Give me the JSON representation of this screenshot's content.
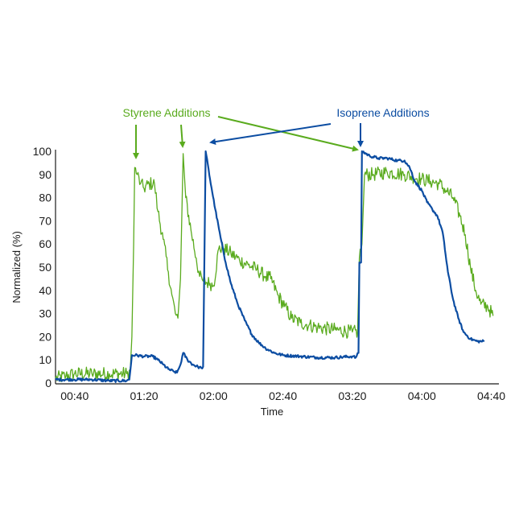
{
  "chart_data": {
    "type": "line",
    "title": "",
    "xlabel": "Time",
    "ylabel": "Normalized (%)",
    "ylim": [
      0,
      100
    ],
    "xlim_minutes": [
      29,
      284
    ],
    "grid": false,
    "legend": "none (annotations used)",
    "y_ticks": [
      "0",
      "10",
      "20",
      "30",
      "40",
      "50",
      "60",
      "70",
      "80",
      "90",
      "100"
    ],
    "x_ticks": [
      {
        "label": "00:40",
        "minutes": 40
      },
      {
        "label": "01:20",
        "minutes": 80
      },
      {
        "label": "02:00",
        "minutes": 120
      },
      {
        "label": "02:40",
        "minutes": 160
      },
      {
        "label": "03:20",
        "minutes": 200
      },
      {
        "label": "04:00",
        "minutes": 240
      },
      {
        "label": "04:40",
        "minutes": 280
      }
    ],
    "series": [
      {
        "name": "Styrene",
        "color": "#5aab1e",
        "noise": 3,
        "points": [
          [
            29,
            2
          ],
          [
            35,
            3
          ],
          [
            40,
            4
          ],
          [
            50,
            4
          ],
          [
            60,
            4
          ],
          [
            70,
            4
          ],
          [
            72,
            5
          ],
          [
            73,
            20
          ],
          [
            74,
            60
          ],
          [
            74.6,
            93
          ],
          [
            76,
            90
          ],
          [
            78,
            86
          ],
          [
            80,
            84
          ],
          [
            83,
            86
          ],
          [
            86,
            86
          ],
          [
            88,
            74
          ],
          [
            91,
            62
          ],
          [
            94,
            48
          ],
          [
            96,
            38
          ],
          [
            98,
            30
          ],
          [
            99.5,
            28
          ],
          [
            101,
            45
          ],
          [
            102.5,
            99
          ],
          [
            104,
            80
          ],
          [
            107,
            66
          ],
          [
            110,
            54
          ],
          [
            112,
            46
          ],
          [
            114,
            44
          ],
          [
            118,
            43
          ],
          [
            120,
            42
          ],
          [
            123,
            58
          ],
          [
            126,
            58
          ],
          [
            130,
            56
          ],
          [
            135,
            53
          ],
          [
            140,
            51
          ],
          [
            145,
            49
          ],
          [
            150,
            46
          ],
          [
            153,
            45
          ],
          [
            157,
            38
          ],
          [
            161,
            33
          ],
          [
            165,
            28
          ],
          [
            170,
            26
          ],
          [
            175,
            25
          ],
          [
            180,
            24
          ],
          [
            190,
            23
          ],
          [
            200,
            22
          ],
          [
            203,
            22
          ],
          [
            204,
            54
          ],
          [
            205.5,
            60
          ],
          [
            207,
            90
          ],
          [
            212,
            90
          ],
          [
            220,
            91
          ],
          [
            230,
            90
          ],
          [
            240,
            88
          ],
          [
            245,
            87
          ],
          [
            250,
            86
          ],
          [
            254,
            83
          ],
          [
            258,
            80
          ],
          [
            262,
            72
          ],
          [
            265,
            64
          ],
          [
            268,
            50
          ],
          [
            271,
            40
          ],
          [
            274,
            34
          ],
          [
            278,
            33
          ],
          [
            281,
            29
          ]
        ]
      },
      {
        "name": "Isoprene",
        "color": "#0c4da2",
        "noise": 0.6,
        "points": [
          [
            29,
            1.5
          ],
          [
            40,
            1.5
          ],
          [
            50,
            1.5
          ],
          [
            60,
            1
          ],
          [
            70,
            1
          ],
          [
            71.5,
            1.5
          ],
          [
            73,
            12
          ],
          [
            75,
            12
          ],
          [
            80,
            11.5
          ],
          [
            85,
            11.5
          ],
          [
            88,
            10
          ],
          [
            91,
            8
          ],
          [
            94,
            6
          ],
          [
            97,
            5
          ],
          [
            99,
            4.5
          ],
          [
            101,
            8
          ],
          [
            102.5,
            13
          ],
          [
            105,
            10
          ],
          [
            108,
            8
          ],
          [
            111,
            7
          ],
          [
            113,
            6.5
          ],
          [
            114,
            7
          ],
          [
            115.5,
            100
          ],
          [
            118,
            88
          ],
          [
            121,
            75
          ],
          [
            124,
            63
          ],
          [
            127,
            52
          ],
          [
            130,
            43
          ],
          [
            134,
            34
          ],
          [
            138,
            27
          ],
          [
            142,
            21
          ],
          [
            146,
            17.5
          ],
          [
            150,
            15
          ],
          [
            155,
            13
          ],
          [
            160,
            12
          ],
          [
            170,
            11.5
          ],
          [
            180,
            11
          ],
          [
            190,
            11
          ],
          [
            200,
            11.5
          ],
          [
            202,
            11
          ],
          [
            203.5,
            13
          ],
          [
            204,
            52
          ],
          [
            205,
            52
          ],
          [
            205.5,
            100
          ],
          [
            210,
            98
          ],
          [
            215,
            97
          ],
          [
            220,
            97
          ],
          [
            226,
            96
          ],
          [
            230,
            96
          ],
          [
            233,
            93
          ],
          [
            236,
            87
          ],
          [
            240,
            83
          ],
          [
            243,
            78
          ],
          [
            246,
            75
          ],
          [
            249,
            72
          ],
          [
            252,
            65
          ],
          [
            255,
            48
          ],
          [
            258,
            36
          ],
          [
            261,
            28
          ],
          [
            264,
            22
          ],
          [
            268,
            19
          ],
          [
            272,
            18
          ],
          [
            276,
            18
          ]
        ]
      }
    ],
    "annotations": [
      {
        "text": "Styrene Additions",
        "color": "#5aab1e",
        "arrow_targets_minutes": [
          74.6,
          102.5,
          205.5
        ]
      },
      {
        "text": "Isoprene Additions",
        "color": "#0c4da2",
        "arrow_targets_minutes": [
          115.5,
          205.5
        ]
      }
    ]
  },
  "labels": {
    "ylabel": "Normalized (%)",
    "xlabel": "Time",
    "styrene_annotation": "Styrene Additions",
    "isoprene_annotation": "Isoprene Additions"
  },
  "colors": {
    "styrene": "#5aab1e",
    "isoprene": "#0c4da2",
    "axis": "#1a1a1a"
  }
}
